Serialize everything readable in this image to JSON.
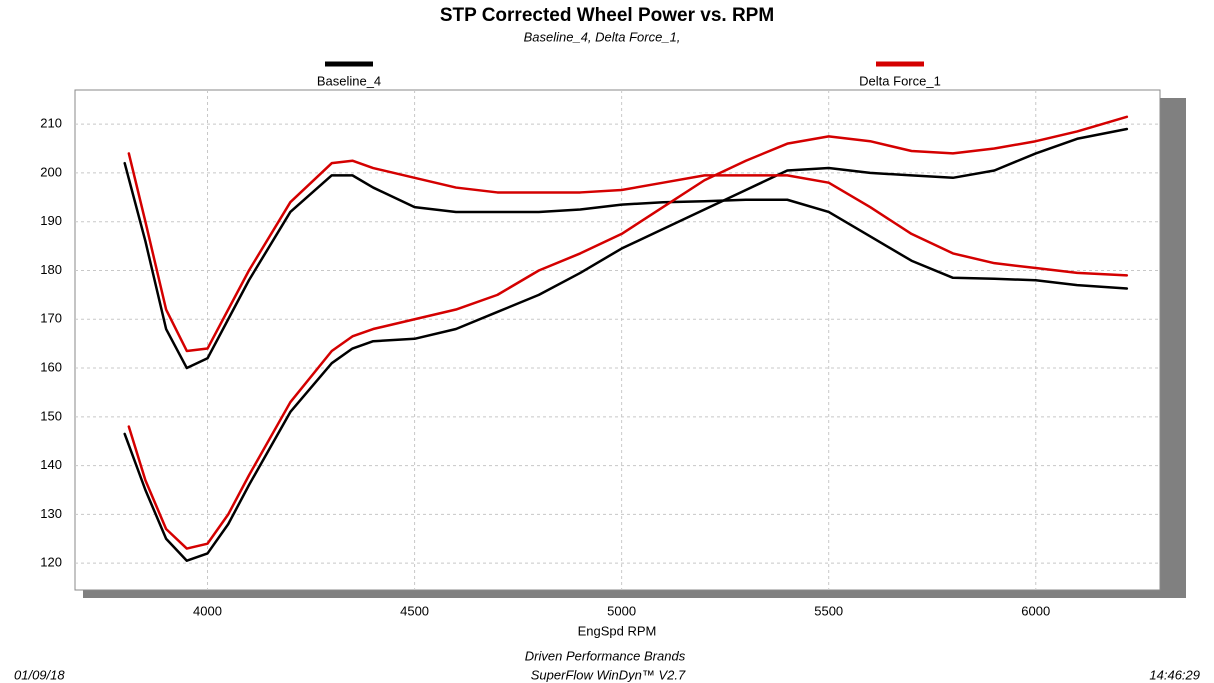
{
  "chart_data": {
    "type": "line",
    "title": "STP Corrected Wheel Power vs. RPM",
    "subtitle": "Baseline_4, Delta Force_1,",
    "x_label": "EngSpd  RPM",
    "xlim": [
      3680,
      6300
    ],
    "ylim": [
      114.5,
      217
    ],
    "xticks": [
      4000,
      4500,
      5000,
      5500,
      6000
    ],
    "yticks": [
      120,
      130,
      140,
      150,
      160,
      170,
      180,
      190,
      200,
      210
    ],
    "grid": true,
    "series": [
      {
        "name": "Baseline_4",
        "color": "#000000",
        "x": [
          3800,
          3850,
          3900,
          3950,
          4000,
          4050,
          4100,
          4200,
          4300,
          4350,
          4400,
          4500,
          4600,
          4700,
          4800,
          4900,
          5000,
          5100,
          5200,
          5300,
          5400,
          5500,
          5600,
          5700,
          5800,
          5900,
          6000,
          6100,
          6220
        ],
        "lines": [
          {
            "values": [
              202,
              186,
              168,
              160,
              162,
              170,
              178,
              192,
              199.5,
              199.5,
              197,
              193,
              192,
              192,
              192,
              192.5,
              193.5,
              194,
              194.2,
              194.5,
              194.5,
              192,
              187,
              182,
              178.5,
              178.3,
              178,
              177,
              176.3
            ]
          },
          {
            "values": [
              146.5,
              135,
              125,
              120.5,
              122,
              128,
              136,
              151,
              161,
              164,
              165.5,
              166,
              168,
              171.5,
              175,
              179.5,
              184.5,
              188.5,
              192.5,
              196.5,
              200.5,
              201,
              200,
              199.5,
              199,
              200.5,
              204,
              207,
              209
            ]
          }
        ]
      },
      {
        "name": "Delta Force_1",
        "color": "#d40000",
        "x": [
          3810,
          3850,
          3900,
          3950,
          4000,
          4050,
          4100,
          4200,
          4300,
          4350,
          4400,
          4500,
          4600,
          4700,
          4800,
          4900,
          5000,
          5100,
          5200,
          5300,
          5400,
          5500,
          5600,
          5700,
          5800,
          5900,
          6000,
          6100,
          6220
        ],
        "lines": [
          {
            "values": [
              204,
              190,
              172,
              163.5,
              164,
              172,
              180,
              194,
              202,
              202.5,
              201,
              199,
              197,
              196,
              196,
              196,
              196.5,
              198,
              199.5,
              199.5,
              199.5,
              198,
              193,
              187.5,
              183.5,
              181.5,
              180.5,
              179.5,
              179
            ]
          },
          {
            "values": [
              148,
              137,
              127,
              123,
              124,
              130,
              138,
              153,
              163.5,
              166.5,
              168,
              170,
              172,
              175,
              180,
              183.5,
              187.5,
              193,
              198.5,
              202.5,
              206,
              207.5,
              206.5,
              204.5,
              204,
              205,
              206.5,
              208.5,
              211.5
            ]
          }
        ]
      }
    ]
  },
  "footer": {
    "date": "01/09/18",
    "time": "14:46:29",
    "company": "Driven Performance Brands",
    "software": "SuperFlow WinDyn™  V2.7"
  }
}
